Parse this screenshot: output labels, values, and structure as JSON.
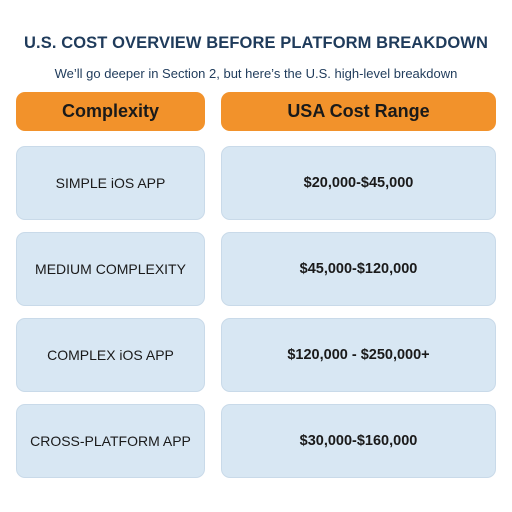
{
  "title": "U.S. COST OVERVIEW BEFORE PLATFORM BREAKDOWN",
  "subtitle": "We’ll go deeper in Section 2, but here’s the U.S. high-level breakdown",
  "table": {
    "headers": [
      "Complexity",
      "USA Cost Range"
    ],
    "rows": [
      {
        "complexity": "SIMPLE iOS APP",
        "cost": "$20,000-$45,000"
      },
      {
        "complexity": "MEDIUM COMPLEXITY",
        "cost": "$45,000-$120,000"
      },
      {
        "complexity": "COMPLEX iOS APP",
        "cost": "$120,000 - $250,000+"
      },
      {
        "complexity": "CROSS-PLATFORM APP",
        "cost": "$30,000-$160,000"
      }
    ]
  },
  "colors": {
    "header_bg": "#f2922b",
    "cell_bg": "#d8e7f3",
    "title_text": "#1f3b5b"
  }
}
